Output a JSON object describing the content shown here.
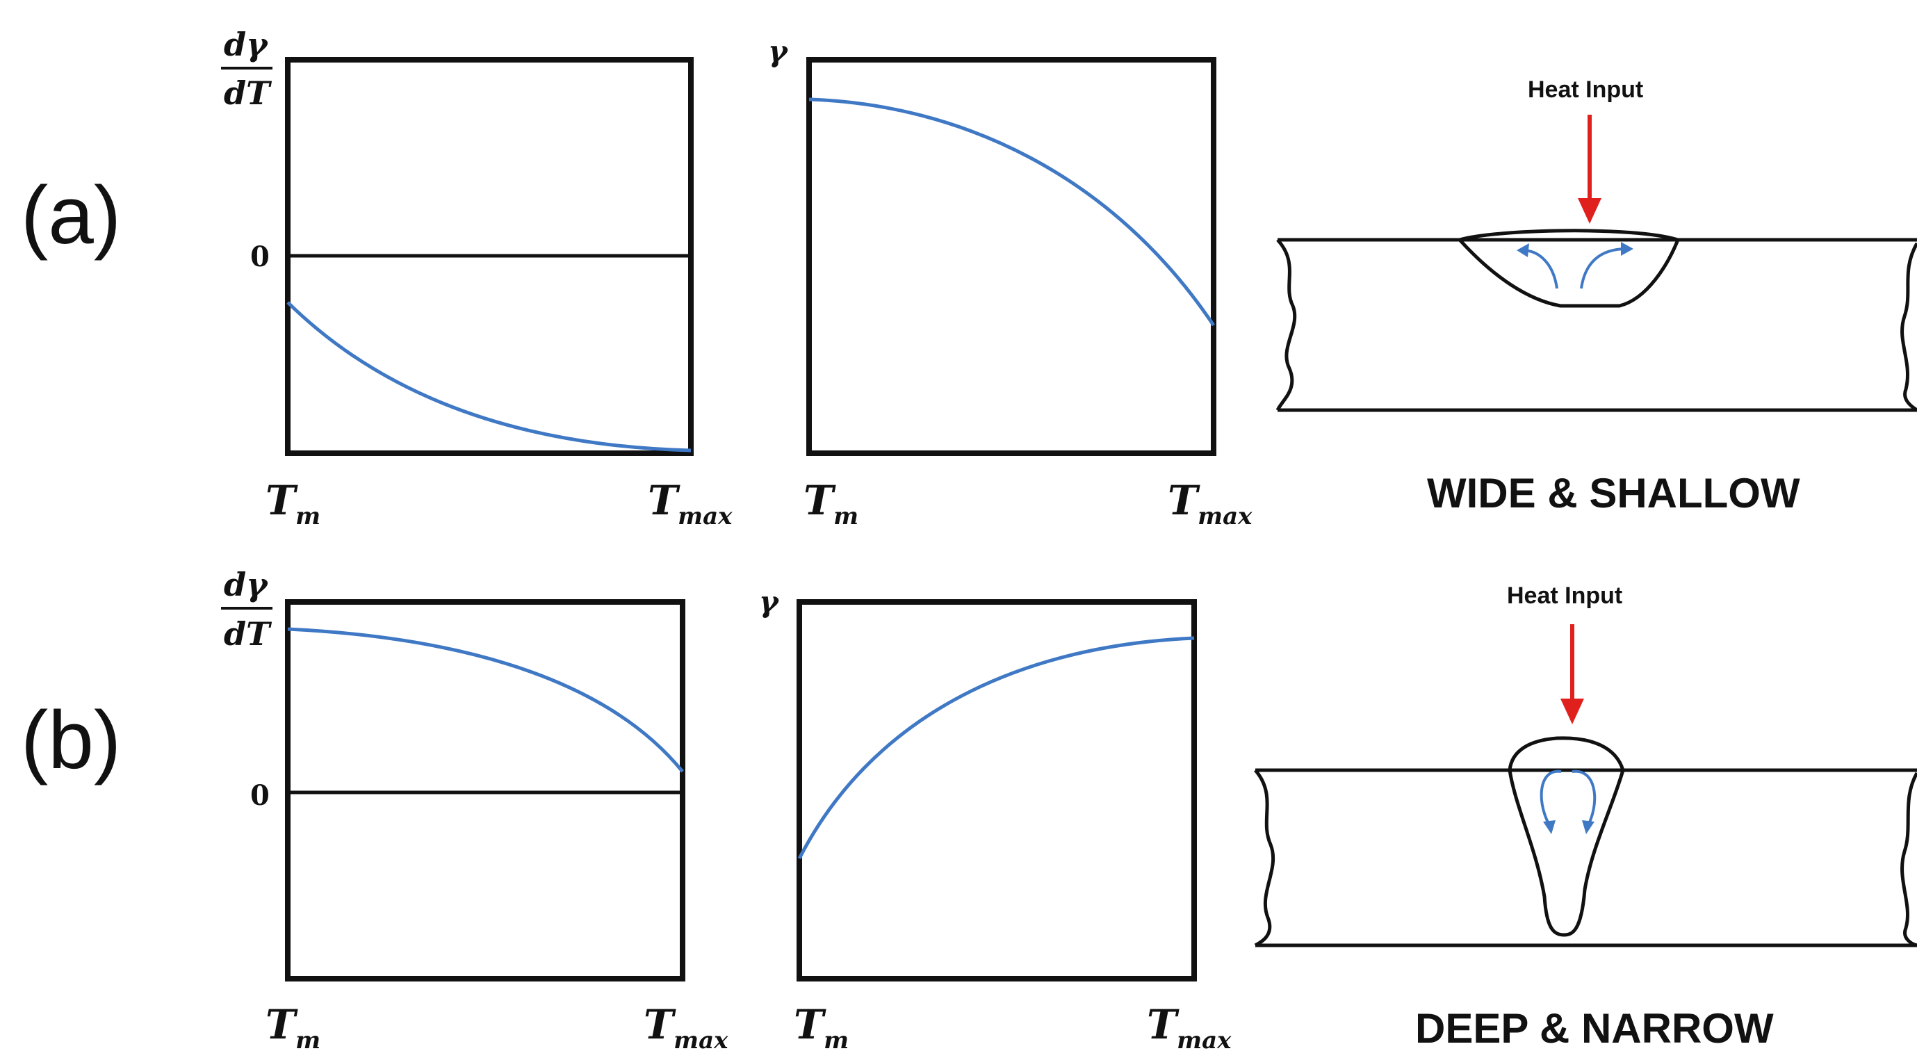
{
  "rows": [
    {
      "label": "(a)",
      "derivative_plot": {
        "y_top": "dγ",
        "y_bottom": "dT",
        "zero": "0",
        "x_min": "T",
        "x_min_sub": "m",
        "x_max": "T",
        "x_max_sub": "max"
      },
      "gamma_plot": {
        "y": "γ",
        "x_min": "T",
        "x_min_sub": "m",
        "x_max": "T",
        "x_max_sub": "max"
      },
      "weld": {
        "heat_label": "Heat Input",
        "caption": "WIDE & SHALLOW"
      }
    },
    {
      "label": "(b)",
      "derivative_plot": {
        "y_top": "dγ",
        "y_bottom": "dT",
        "zero": "0",
        "x_min": "T",
        "x_min_sub": "m",
        "x_max": "T",
        "x_max_sub": "max"
      },
      "gamma_plot": {
        "y": "γ",
        "x_min": "T",
        "x_min_sub": "m",
        "x_max": "T",
        "x_max_sub": "max"
      },
      "weld": {
        "heat_label": "Heat Input",
        "caption": "DEEP & NARROW"
      }
    }
  ],
  "colors": {
    "curve": "#3f78c4",
    "arrow": "#e0201c",
    "line": "#111111"
  }
}
